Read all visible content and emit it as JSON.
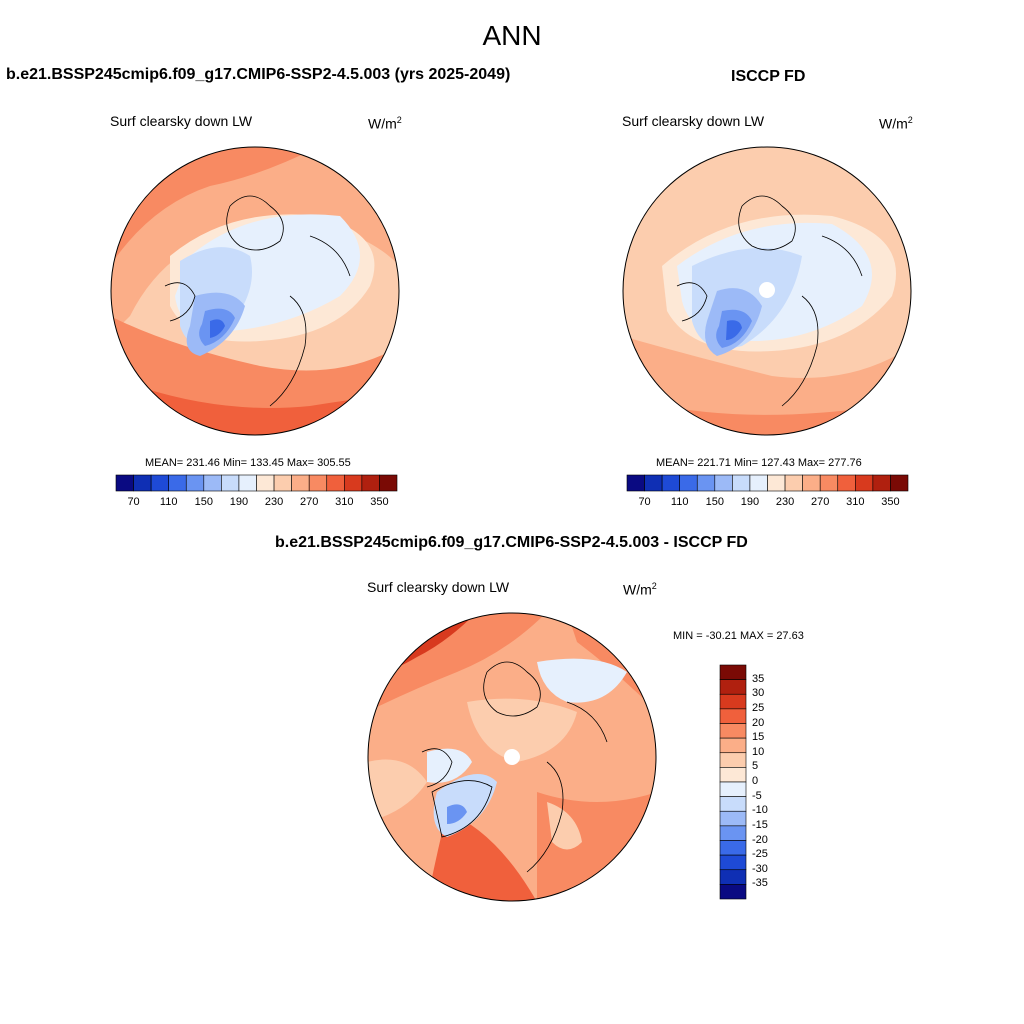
{
  "figure": {
    "title": "ANN"
  },
  "panels": {
    "model": {
      "title": "b.e21.BSSP245cmip6.f09_g17.CMIP6-SSP2-4.5.003 (yrs 2025-2049)",
      "variable": "Surf clearsky down LW",
      "units_base": "W/m",
      "units_exp": "2",
      "stats": "MEAN= 231.46  Min= 133.45  Max= 305.55",
      "colorbar_ticks": [
        "70",
        "110",
        "150",
        "190",
        "230",
        "270",
        "310",
        "350"
      ]
    },
    "obs": {
      "title": "ISCCP FD",
      "variable": "Surf clearsky down LW",
      "units_base": "W/m",
      "units_exp": "2",
      "stats": "MEAN= 221.71  Min= 127.43  Max= 277.76",
      "colorbar_ticks": [
        "70",
        "110",
        "150",
        "190",
        "230",
        "270",
        "310",
        "350"
      ]
    },
    "diff": {
      "title": "b.e21.BSSP245cmip6.f09_g17.CMIP6-SSP2-4.5.003 - ISCCP FD",
      "variable": "Surf clearsky down LW",
      "units_base": "W/m",
      "units_exp": "2",
      "stats": "MIN = -30.21 MAX =  27.63",
      "colorbar_ticks": [
        "35",
        "30",
        "25",
        "20",
        "15",
        "10",
        "5",
        "0",
        "-5",
        "-10",
        "-15",
        "-20",
        "-25",
        "-30",
        "-35"
      ]
    }
  },
  "colors": {
    "abs_scale": [
      "#0a0a82",
      "#0f2fb4",
      "#1e4ad6",
      "#3a6ae8",
      "#6a94f2",
      "#9cbaf7",
      "#c8dcfb",
      "#e6f0fd",
      "#fde8d6",
      "#fccdae",
      "#fbae88",
      "#f88a62",
      "#f0603c",
      "#d83a1e",
      "#b0200f",
      "#7a0a05"
    ],
    "diff_scale": [
      "#7a0a05",
      "#b0200f",
      "#d83a1e",
      "#f0603c",
      "#f88a62",
      "#fbae88",
      "#fccdae",
      "#fde8d6",
      "#e6f0fd",
      "#c8dcfb",
      "#9cbaf7",
      "#6a94f2",
      "#3a6ae8",
      "#1e4ad6",
      "#0f2fb4",
      "#0a0a82"
    ]
  }
}
